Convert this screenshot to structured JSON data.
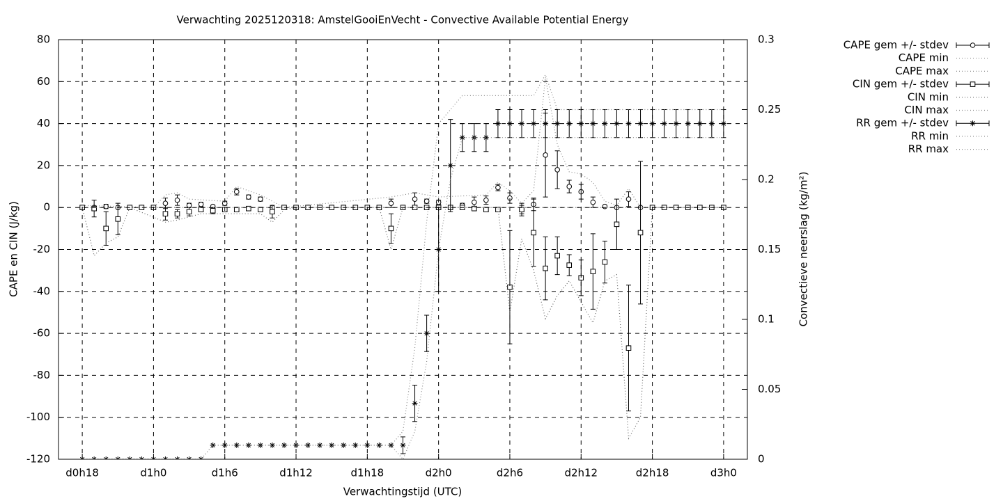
{
  "chart_data": {
    "type": "errorbar",
    "title": "Verwachting 2025120318: AmstelGooiEnVecht - Convective Available Potential Energy",
    "xlabel": "Verwachtingstijd (UTC)",
    "ylabel": "CAPE en CIN (J/kg)",
    "y2label": "Convectieve neerslag (kg/m²)",
    "xlim": [
      16,
      74
    ],
    "xticks": [
      {
        "value": 18,
        "label": "d0h18"
      },
      {
        "value": 24,
        "label": "d1h0"
      },
      {
        "value": 30,
        "label": "d1h6"
      },
      {
        "value": 36,
        "label": "d1h12"
      },
      {
        "value": 42,
        "label": "d1h18"
      },
      {
        "value": 48,
        "label": "d2h0"
      },
      {
        "value": 54,
        "label": "d2h6"
      },
      {
        "value": 60,
        "label": "d2h12"
      },
      {
        "value": 66,
        "label": "d2h18"
      },
      {
        "value": 72,
        "label": "d3h0"
      }
    ],
    "ylim": [
      -120,
      80
    ],
    "yticks": [
      -120,
      -100,
      -80,
      -60,
      -40,
      -20,
      0,
      20,
      40,
      60,
      80
    ],
    "y2lim": [
      0,
      0.3
    ],
    "y2ticks": [
      0,
      0.05,
      0.1,
      0.15,
      0.2,
      0.25,
      0.3
    ],
    "grid": true,
    "legend": "outside-right",
    "x": [
      18,
      19,
      20,
      21,
      22,
      23,
      24,
      25,
      26,
      27,
      28,
      29,
      30,
      31,
      32,
      33,
      34,
      35,
      36,
      37,
      38,
      39,
      40,
      41,
      42,
      43,
      44,
      45,
      46,
      47,
      48,
      49,
      50,
      51,
      52,
      53,
      54,
      55,
      56,
      57,
      58,
      59,
      60,
      61,
      62,
      63,
      64,
      65,
      66,
      67,
      68,
      69,
      70,
      71,
      72
    ],
    "series": [
      {
        "name": "CAPE gem +/- stdev",
        "style": "errorbar",
        "marker": "circle",
        "color": "#000000",
        "axis": "y",
        "values": [
          0,
          0,
          0.5,
          0,
          0,
          0,
          0,
          2,
          3.5,
          1,
          1.5,
          0.5,
          2,
          7.5,
          5,
          4,
          0,
          0,
          0,
          0,
          0,
          0,
          0,
          0,
          0,
          0,
          2,
          0,
          4,
          3,
          2.5,
          0,
          1,
          2.5,
          3.5,
          9.5,
          4.5,
          -1,
          1.5,
          25,
          18,
          10,
          7.5,
          2.5,
          0.5,
          0,
          4,
          0,
          0,
          0,
          0,
          0,
          0,
          0,
          0
        ],
        "errors": [
          1,
          0,
          1,
          0,
          0,
          0,
          0,
          2.5,
          2.5,
          1,
          1,
          0.5,
          1,
          1.5,
          1,
          1,
          0,
          0,
          0,
          0,
          0,
          0,
          0,
          0,
          0,
          0,
          2,
          0,
          3,
          1,
          1,
          0,
          1,
          2.5,
          2,
          1.5,
          2.5,
          3,
          3,
          20,
          9,
          3,
          3.5,
          2.5,
          0.5,
          0,
          3.5,
          0,
          0,
          0,
          0,
          0,
          0,
          0,
          0
        ]
      },
      {
        "name": "CAPE min",
        "style": "dotted",
        "color": "#888888",
        "axis": "y",
        "x": [
          18,
          72
        ],
        "values": [
          0,
          0
        ]
      },
      {
        "name": "CAPE max",
        "style": "dotted",
        "color": "#888888",
        "axis": "y",
        "x": [
          18,
          24,
          25,
          26,
          27,
          30,
          31,
          33,
          35,
          44,
          46,
          48,
          52,
          53,
          54,
          55,
          56,
          57,
          58,
          59,
          60,
          61,
          62,
          63,
          64,
          65,
          66,
          72
        ],
        "values": [
          1,
          0,
          6,
          7,
          4,
          3,
          10,
          6,
          0,
          5,
          7,
          5,
          6,
          12,
          8,
          2,
          8,
          62,
          30,
          17,
          16,
          12,
          3,
          1,
          9,
          0,
          0,
          0
        ]
      },
      {
        "name": "CIN gem +/- stdev",
        "style": "errorbar",
        "marker": "square",
        "color": "#000000",
        "axis": "y",
        "values": [
          0,
          -0.5,
          -10,
          -5.5,
          0,
          0,
          0,
          -3,
          -3,
          -2,
          -1,
          -1.5,
          -1,
          -1,
          -0.5,
          -1,
          -2,
          0,
          0,
          0,
          0,
          0,
          0,
          0,
          0,
          0,
          -10,
          0,
          0,
          0,
          0,
          0,
          0,
          -0.5,
          -1,
          -1,
          -38,
          -1,
          -12,
          -29,
          -23,
          -27.5,
          -33.5,
          -30.5,
          -26,
          -8,
          -67,
          -12,
          0,
          0,
          0,
          0,
          0,
          0,
          0
        ],
        "errors": [
          1,
          4,
          8,
          7.5,
          0,
          0,
          0,
          3,
          2,
          2,
          0.5,
          1.5,
          1,
          0.5,
          0.5,
          1,
          3,
          0,
          0,
          0,
          0,
          0,
          0,
          0,
          0,
          0,
          7,
          0,
          0,
          0,
          0,
          0,
          0,
          0,
          0,
          0,
          27,
          2,
          16,
          15,
          9,
          5,
          8.5,
          18,
          10,
          12,
          30,
          34,
          0,
          0,
          0,
          0,
          0,
          0,
          0
        ]
      },
      {
        "name": "CIN min",
        "style": "dotted",
        "color": "#666666",
        "axis": "y",
        "x": [
          18,
          19,
          20,
          21,
          22,
          25,
          26,
          28,
          33,
          34,
          35,
          36,
          43,
          44,
          45,
          53,
          54,
          55,
          56,
          57,
          58,
          59,
          60,
          61,
          62,
          63,
          64,
          65,
          66,
          72
        ],
        "values": [
          0,
          -23,
          -17,
          -14,
          0,
          -7,
          -6,
          -3,
          -3,
          -7,
          -1,
          0,
          0,
          -20,
          0,
          0,
          -50,
          -15,
          -30,
          -53,
          -42,
          -35,
          -45,
          -55,
          -35,
          -32,
          -110,
          -100,
          0,
          0
        ]
      },
      {
        "name": "CIN max",
        "style": "dotted",
        "color": "#888888",
        "axis": "y",
        "x": [
          18,
          72
        ],
        "values": [
          0,
          0
        ]
      },
      {
        "name": "RR gem +/- stdev",
        "style": "errorbar",
        "marker": "star",
        "color": "#000000",
        "axis": "y2",
        "values": [
          0,
          0,
          0,
          0,
          0,
          0,
          0,
          0,
          0,
          0,
          0,
          0.01,
          0.01,
          0.01,
          0.01,
          0.01,
          0.01,
          0.01,
          0.01,
          0.01,
          0.01,
          0.01,
          0.01,
          0.01,
          0.01,
          0.01,
          0.01,
          0.01,
          0.04,
          0.09,
          0.15,
          0.21,
          0.23,
          0.23,
          0.23,
          0.24,
          0.24,
          0.24,
          0.24,
          0.24,
          0.24,
          0.24,
          0.24,
          0.24,
          0.24,
          0.24,
          0.24,
          0.24,
          0.24,
          0.24,
          0.24,
          0.24,
          0.24,
          0.24,
          0.24
        ],
        "errors": [
          0,
          0,
          0,
          0,
          0,
          0,
          0,
          0,
          0,
          0,
          0,
          0,
          0,
          0,
          0,
          0,
          0,
          0,
          0,
          0,
          0,
          0,
          0,
          0,
          0,
          0,
          0,
          0.006,
          0.013,
          0.013,
          0.03,
          0.033,
          0.01,
          0.01,
          0.01,
          0.01,
          0.01,
          0.01,
          0.01,
          0.01,
          0.01,
          0.01,
          0.01,
          0.01,
          0.01,
          0.01,
          0.01,
          0.01,
          0.01,
          0.01,
          0.01,
          0.01,
          0.01,
          0.01,
          0.01
        ]
      },
      {
        "name": "RR min",
        "style": "dotted",
        "color": "#888888",
        "axis": "y2",
        "x": [
          18,
          28,
          29,
          44,
          45,
          46,
          47,
          48,
          49,
          50,
          72
        ],
        "values": [
          0,
          0,
          0.01,
          0.01,
          0,
          0.02,
          0.07,
          0.15,
          0.2,
          0.23,
          0.23
        ]
      },
      {
        "name": "RR max",
        "style": "dotted",
        "color": "#888888",
        "axis": "y2",
        "x": [
          18,
          28,
          29,
          44,
          45,
          46,
          47,
          48,
          49,
          50,
          56,
          57,
          58,
          59,
          72
        ],
        "values": [
          0,
          0,
          0.01,
          0.01,
          0.02,
          0.08,
          0.17,
          0.24,
          0.25,
          0.26,
          0.26,
          0.275,
          0.25,
          0.25,
          0.25
        ]
      }
    ]
  }
}
